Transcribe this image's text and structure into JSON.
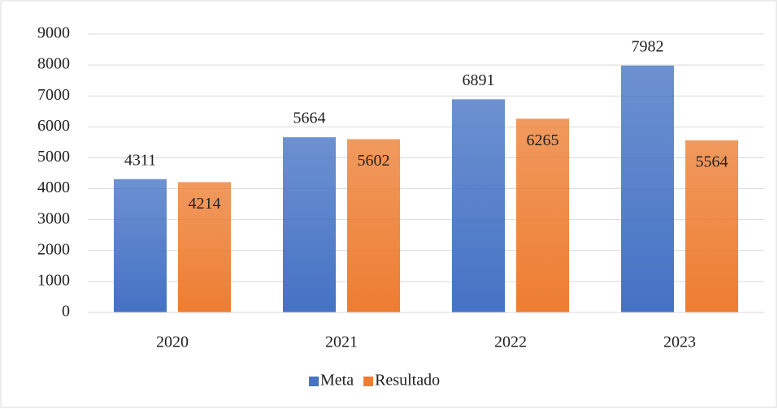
{
  "chart_data": {
    "type": "bar",
    "categories": [
      "2020",
      "2021",
      "2022",
      "2023"
    ],
    "series": [
      {
        "name": "Meta",
        "color": "#4472c4",
        "values": [
          4311,
          5664,
          6891,
          7982
        ]
      },
      {
        "name": "Resultado",
        "color": "#ed7d31",
        "values": [
          4214,
          5602,
          6265,
          5564
        ]
      }
    ],
    "ylim": [
      0,
      9000
    ],
    "yticks": [
      0,
      1000,
      2000,
      3000,
      4000,
      5000,
      6000,
      7000,
      8000,
      9000
    ],
    "grid": true,
    "legend": "bottom"
  }
}
